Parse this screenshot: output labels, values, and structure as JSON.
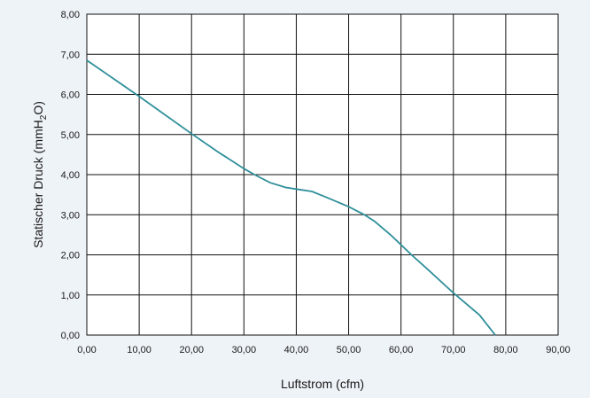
{
  "chart_data": {
    "type": "line",
    "xlabel": "Luftstrom (cfm)",
    "ylabel_main": "Statischer Druck (mmH",
    "ylabel_sub": "2",
    "ylabel_end": "O)",
    "xlim": [
      0,
      90
    ],
    "ylim": [
      0,
      8
    ],
    "x_ticks": [
      0,
      10,
      20,
      30,
      40,
      50,
      60,
      70,
      80,
      90
    ],
    "x_tick_labels": [
      "0,00",
      "10,00",
      "20,00",
      "30,00",
      "40,00",
      "50,00",
      "60,00",
      "70,00",
      "80,00",
      "90,00"
    ],
    "y_ticks": [
      0,
      1,
      2,
      3,
      4,
      5,
      6,
      7,
      8
    ],
    "y_tick_labels": [
      "0,00",
      "1,00",
      "2,00",
      "3,00",
      "4,00",
      "5,00",
      "6,00",
      "7,00",
      "8,00"
    ],
    "grid": true,
    "series": [
      {
        "color": "#2f8f9a",
        "x": [
          0,
          10,
          20,
          25,
          30,
          32,
          35,
          38,
          40,
          43,
          46,
          50,
          53,
          55,
          58,
          60,
          62,
          65,
          70,
          75,
          78
        ],
        "y": [
          6.85,
          5.95,
          5.02,
          4.57,
          4.15,
          4.0,
          3.8,
          3.68,
          3.64,
          3.58,
          3.42,
          3.2,
          3.0,
          2.83,
          2.5,
          2.25,
          2.0,
          1.65,
          1.05,
          0.5,
          0.0
        ]
      }
    ]
  }
}
